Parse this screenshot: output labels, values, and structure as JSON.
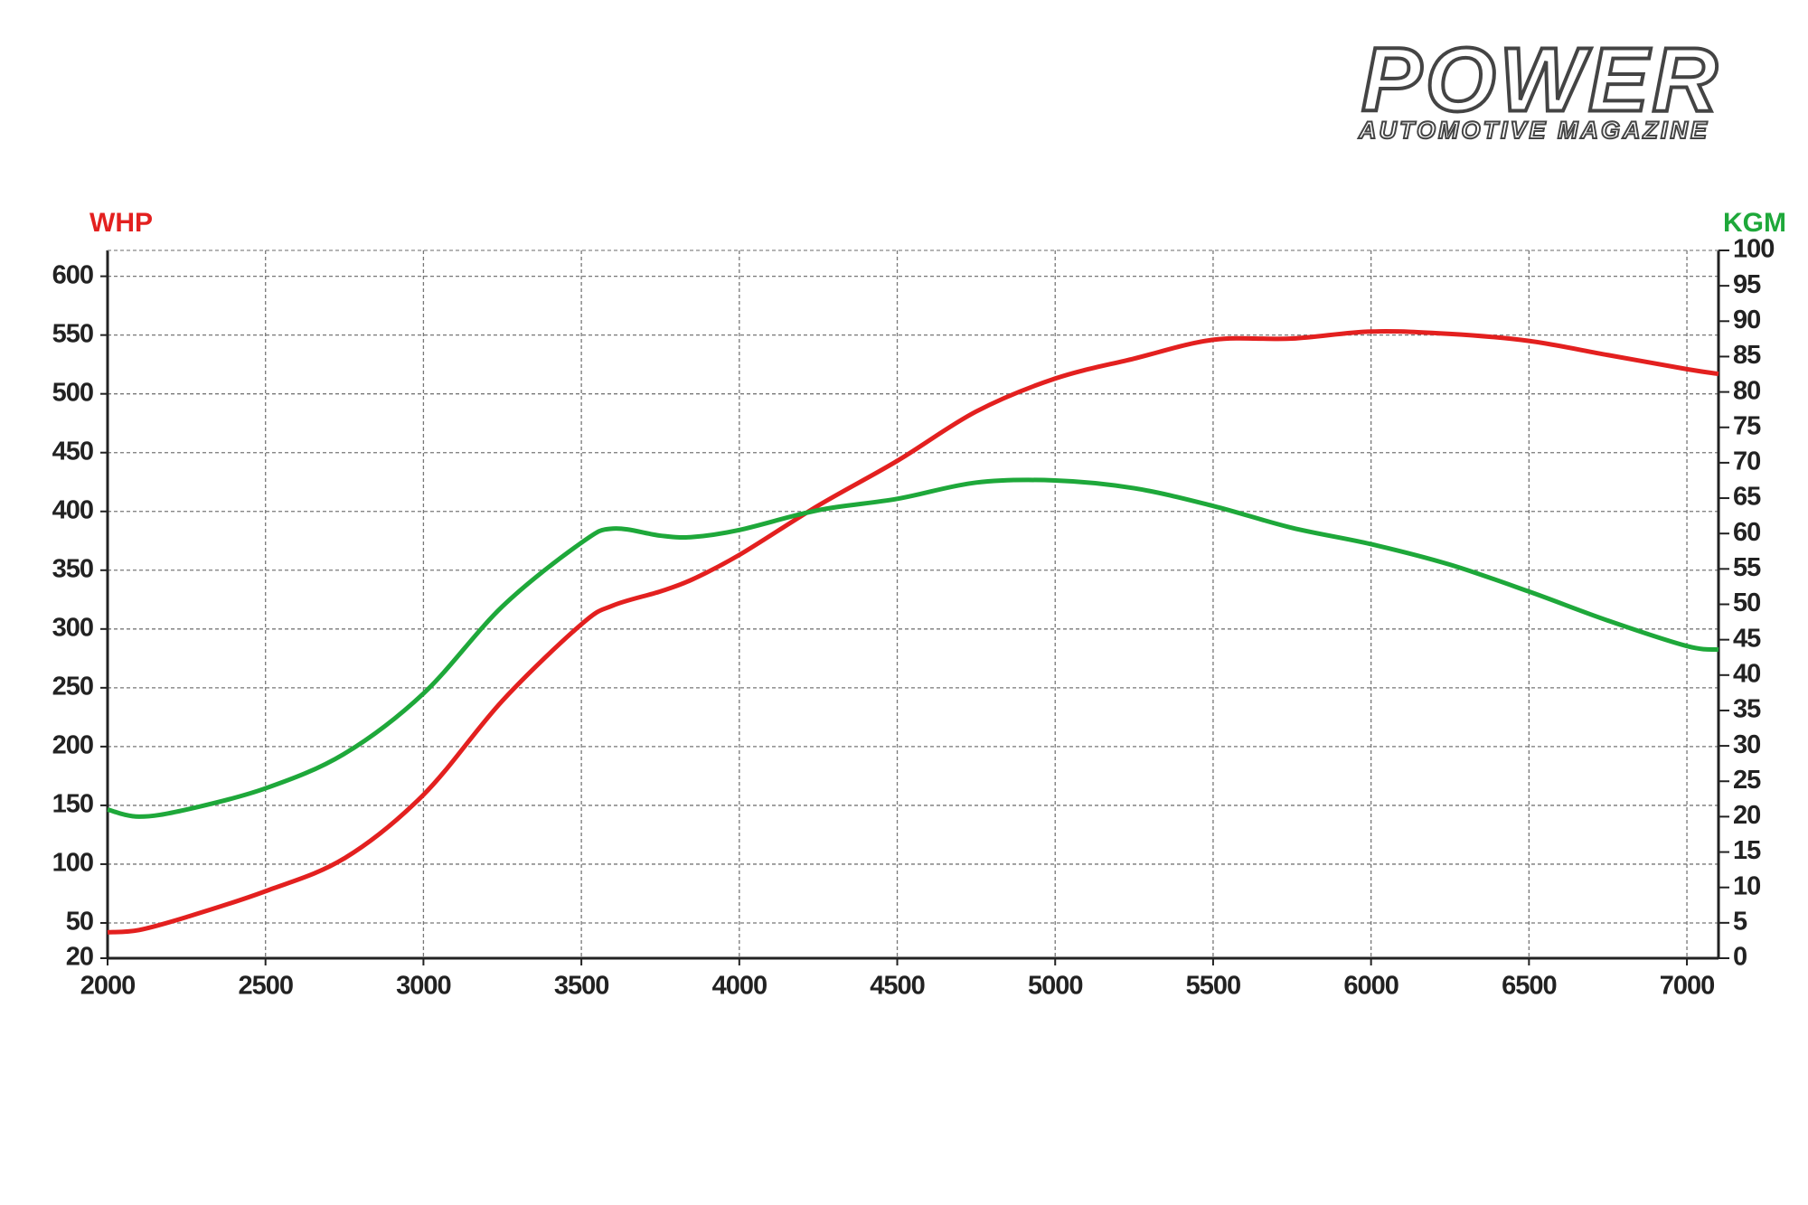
{
  "logo": {
    "title": "POWER",
    "subtitle": "AUTOMOTIVE MAGAZINE"
  },
  "chart_data": {
    "type": "line",
    "y_label": "WHP",
    "y2_label": "KGM",
    "x": [
      2000,
      2100,
      2250,
      2500,
      2750,
      3000,
      3250,
      3500,
      3600,
      3750,
      3850,
      4000,
      4250,
      4500,
      4750,
      5000,
      5250,
      5500,
      5750,
      6000,
      6250,
      6500,
      6750,
      7000,
      7100
    ],
    "series": [
      {
        "color": "#e3201f",
        "axis": "y",
        "values": [
          42,
          44,
          55,
          77,
          105,
          159,
          239,
          304,
          320,
          332,
          342,
          363,
          405,
          443,
          485,
          513,
          530,
          546,
          547,
          553,
          551,
          545,
          533,
          521,
          517
        ]
      },
      {
        "color": "#1ea83a",
        "axis": "y2",
        "values": [
          21,
          20,
          21,
          24,
          28.9,
          37.4,
          49.7,
          58.7,
          60.7,
          59.7,
          59.5,
          60.5,
          63.3,
          64.9,
          67.2,
          67.5,
          66.4,
          63.9,
          60.8,
          58.5,
          55.6,
          51.8,
          47.7,
          44.1,
          43.6
        ]
      }
    ],
    "xlim": [
      2000,
      7100
    ],
    "xticks": [
      2000,
      2500,
      3000,
      3500,
      4000,
      4500,
      5000,
      5500,
      6000,
      6500,
      7000
    ],
    "ylim": [
      20,
      622
    ],
    "yticks": [
      20,
      50,
      100,
      150,
      200,
      250,
      300,
      350,
      400,
      450,
      500,
      550,
      600
    ],
    "y2lim": [
      0,
      100
    ],
    "y2ticks": [
      0,
      5,
      10,
      15,
      20,
      25,
      30,
      35,
      40,
      45,
      50,
      55,
      60,
      65,
      70,
      75,
      80,
      85,
      90,
      95,
      100
    ],
    "y_label_color": "#e3201f",
    "y2_label_color": "#1ea83a",
    "grid": true
  }
}
